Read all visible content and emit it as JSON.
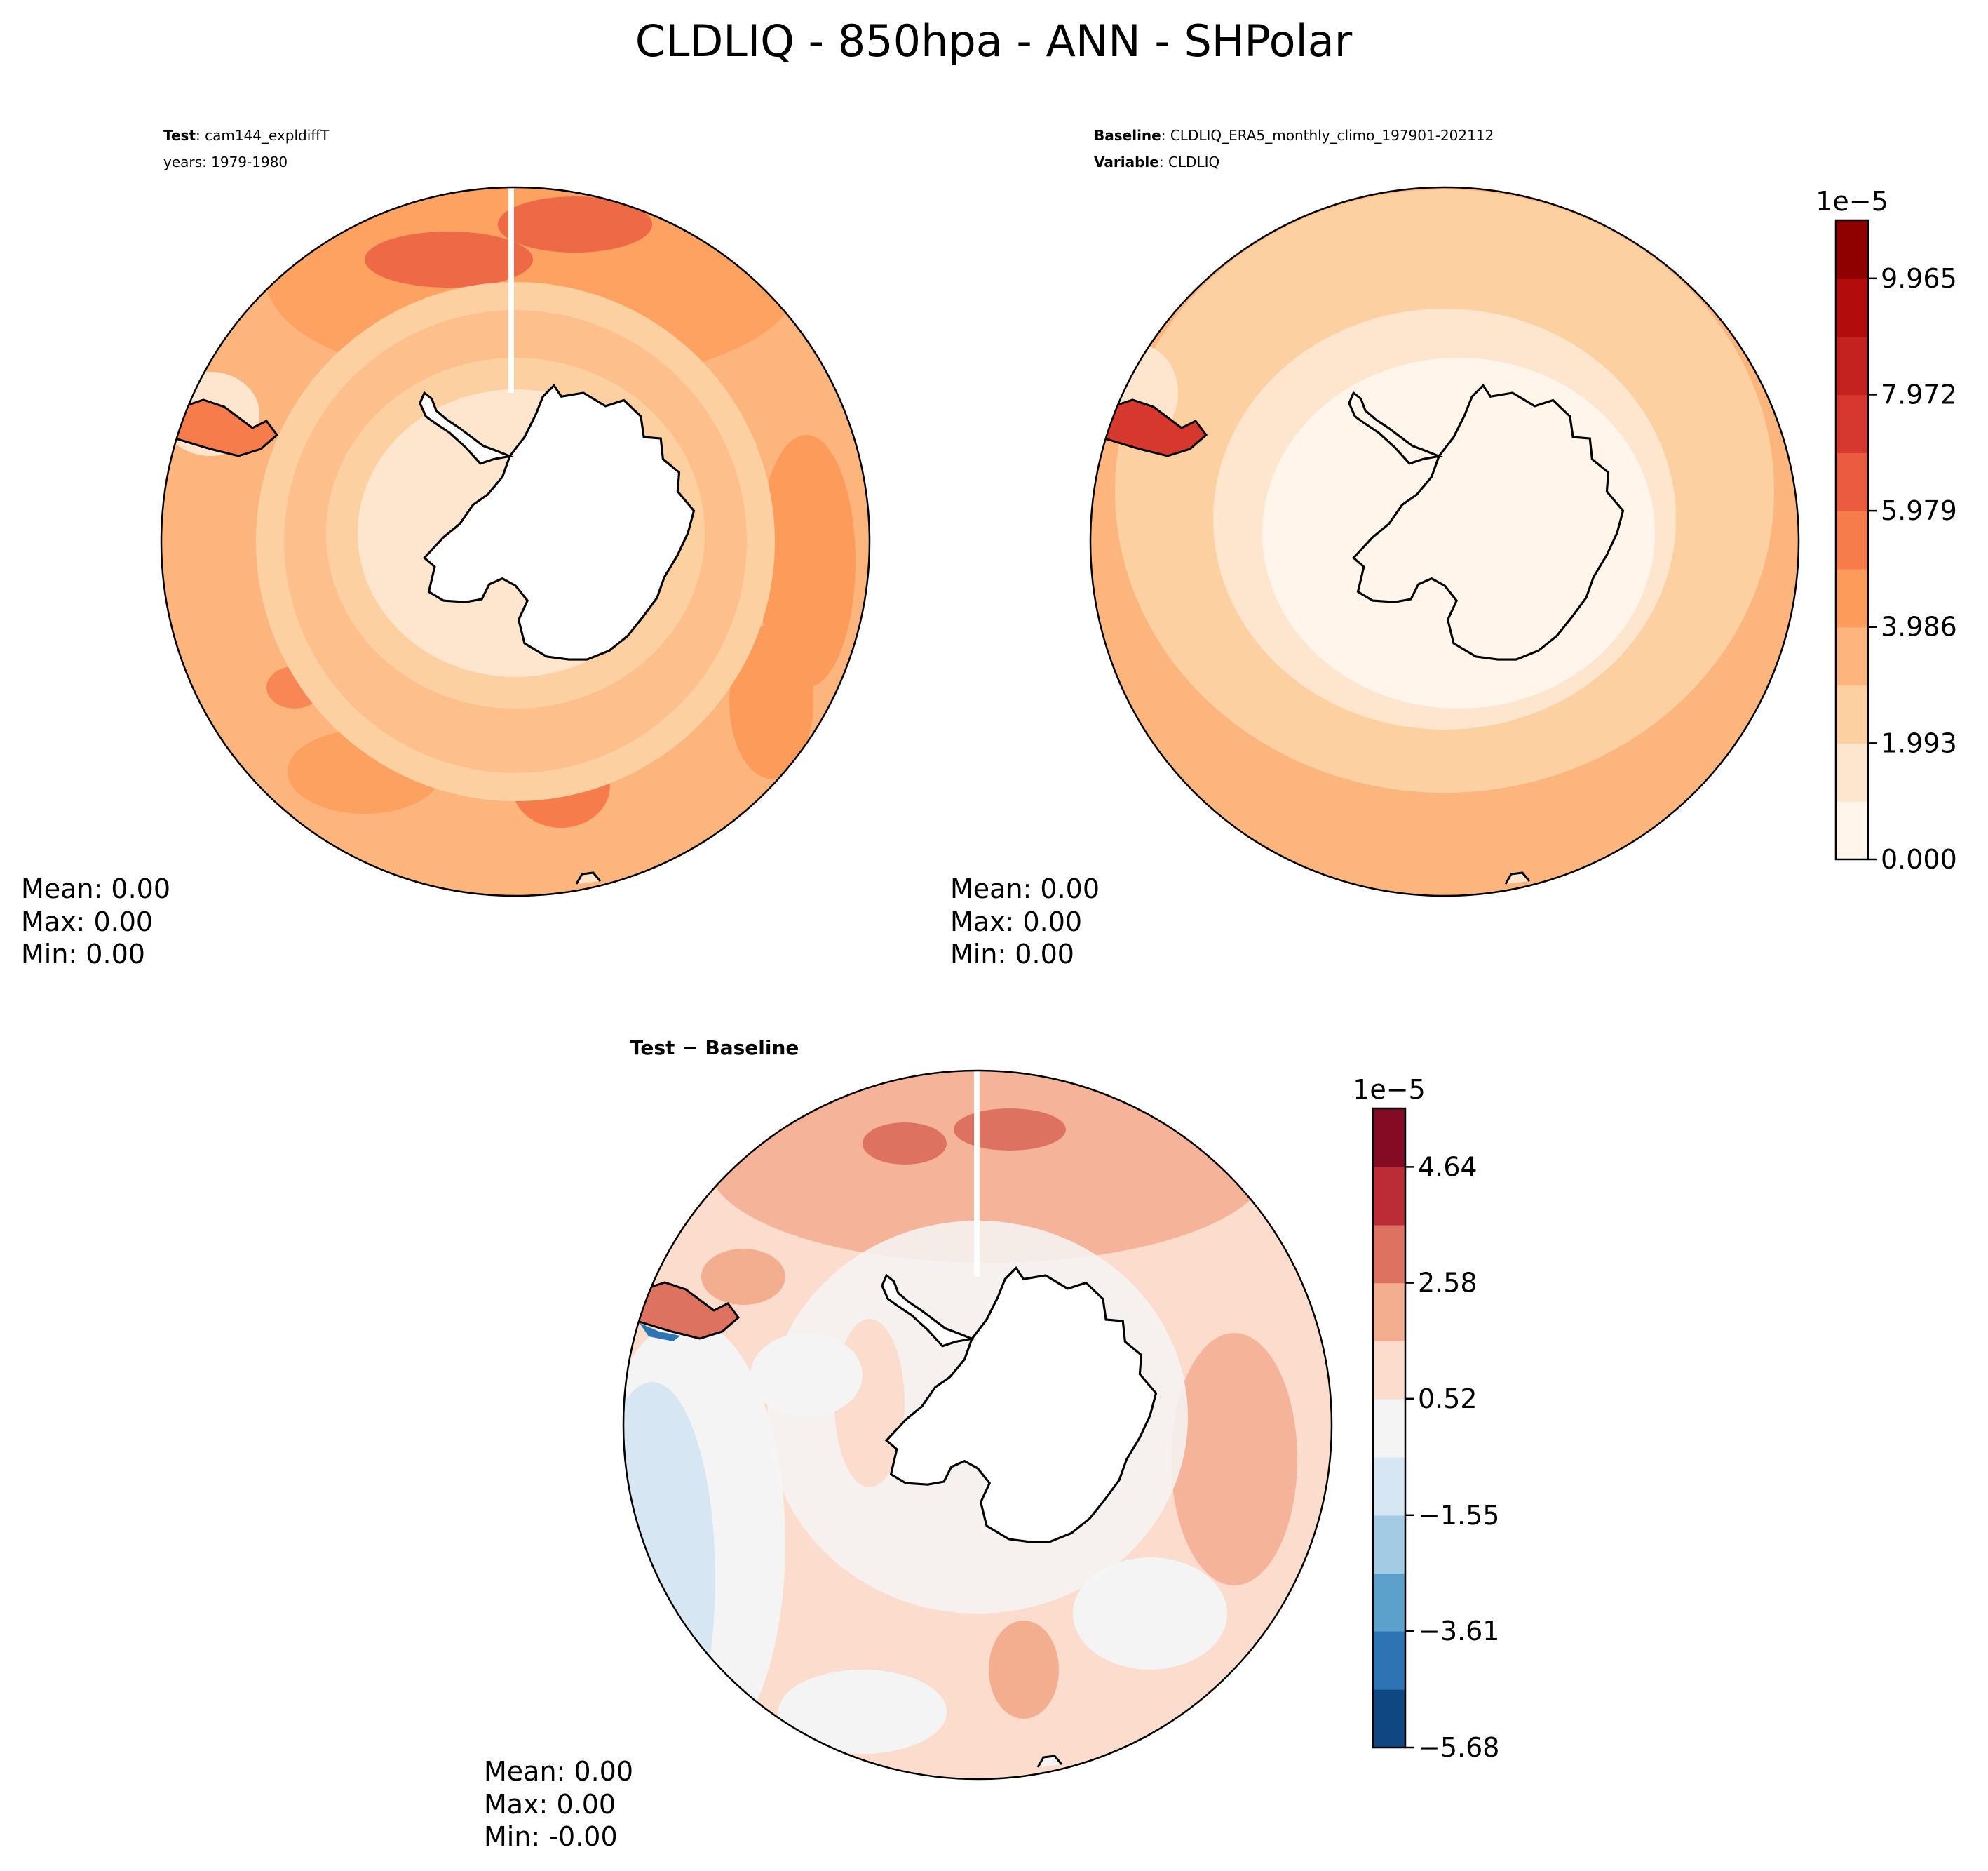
{
  "figure": {
    "title": "CLDLIQ - 850hpa - ANN - SHPolar"
  },
  "chart_data": [
    {
      "type": "heatmap",
      "panel": "test",
      "projection": "south-polar-stereographic",
      "title_lines": [
        {
          "label": "Test",
          "value": ": cam144_expldiffT"
        },
        {
          "label": "",
          "value": "years: 1979-1980"
        }
      ],
      "stats": {
        "mean": "Mean:  0.00",
        "max": "Max:  0.00",
        "min": "Min:  0.00"
      }
    },
    {
      "type": "heatmap",
      "panel": "baseline",
      "projection": "south-polar-stereographic",
      "title_lines": [
        {
          "label": "Baseline",
          "value": ": CLDLIQ_ERA5_monthly_climo_197901-202112"
        },
        {
          "label": "Variable",
          "value": ": CLDLIQ"
        }
      ],
      "stats": {
        "mean": "Mean:  0.00",
        "max": "Max:  0.00",
        "min": "Min:  0.00"
      },
      "colorbar": {
        "exponent_label": "1e−5",
        "range": [
          0.0,
          10.9615
        ],
        "boundaries": [
          0.0,
          0.9965,
          1.993,
          2.9895,
          3.986,
          4.9825,
          5.979,
          6.9755,
          7.972,
          8.9685,
          9.965,
          10.9615
        ],
        "ticks": [
          0.0,
          1.993,
          3.986,
          5.979,
          7.972,
          9.965
        ],
        "tick_labels": [
          "0.000",
          "1.993",
          "3.986",
          "5.979",
          "7.972",
          "9.965"
        ],
        "colors": [
          "#fff5eb",
          "#fee6ce",
          "#fdd0a2",
          "#fdb57e",
          "#fd9c5a",
          "#f67c4b",
          "#ea5b3f",
          "#d6382d",
          "#c4221e",
          "#b30c0c",
          "#8f0000"
        ]
      }
    },
    {
      "type": "heatmap",
      "panel": "difference",
      "projection": "south-polar-stereographic",
      "title_lines": [
        {
          "label": "Test − Baseline",
          "value": ""
        }
      ],
      "stats": {
        "mean": "Mean:  0.00",
        "max": "Max:  0.00",
        "min": "Min: -0.00"
      },
      "colorbar": {
        "exponent_label": "1e−5",
        "range": [
          -5.68,
          5.68
        ],
        "boundaries": [
          -5.68,
          -4.645,
          -3.61,
          -2.58,
          -1.55,
          -0.515,
          0.52,
          1.55,
          2.58,
          3.61,
          4.64,
          5.68
        ],
        "ticks": [
          -5.68,
          -3.61,
          -1.55,
          0.52,
          2.58,
          4.64
        ],
        "tick_labels": [
          "−5.68",
          "−3.61",
          "−1.55",
          "0.52",
          "2.58",
          "4.64"
        ],
        "colors": [
          "#0e4782",
          "#2c74b4",
          "#5ba1cc",
          "#a3cce4",
          "#d6e6f2",
          "#f4f4f4",
          "#fcdccc",
          "#f3ad8f",
          "#de7261",
          "#bb2c36",
          "#850b25"
        ]
      }
    }
  ]
}
